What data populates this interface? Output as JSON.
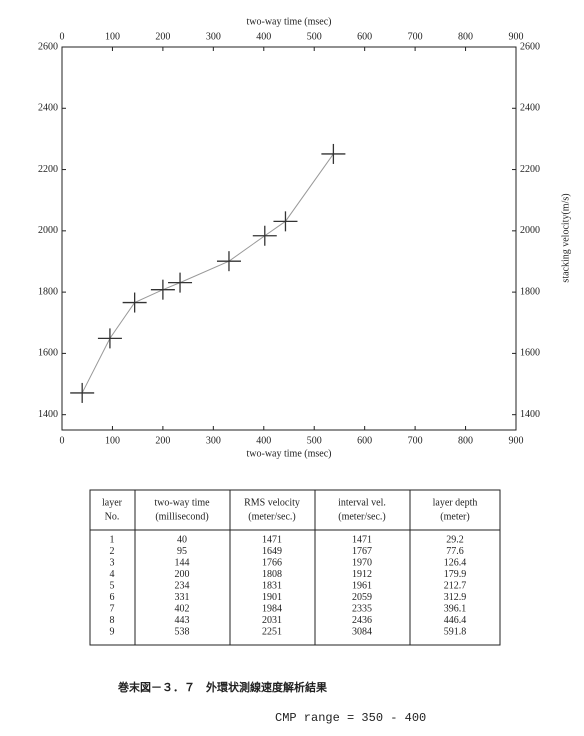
{
  "chart_data": {
    "type": "line",
    "xlabel": "two-way time (msec)",
    "ylabel": "stacking velocity(m/s)",
    "x": [
      40,
      95,
      144,
      200,
      234,
      331,
      402,
      443,
      538
    ],
    "values": [
      1471,
      1649,
      1766,
      1808,
      1831,
      1901,
      1984,
      2031,
      2251
    ],
    "color": "#333333",
    "xlim": [
      0,
      900
    ],
    "xticks": [
      0,
      100,
      200,
      300,
      400,
      500,
      600,
      700,
      800,
      900
    ],
    "ylim": [
      1350,
      2600
    ],
    "yticks": [
      1400,
      1600,
      1800,
      2000,
      2200,
      2400,
      2600
    ]
  },
  "table": {
    "header": [
      [
        "layer",
        "No."
      ],
      [
        "two-way time",
        "(millisecond)"
      ],
      [
        "RMS velocity",
        "(meter/sec.)"
      ],
      [
        "interval vel.",
        "(meter/sec.)"
      ],
      [
        "layer depth",
        "(meter)"
      ]
    ],
    "rows": [
      [
        1,
        40,
        1471,
        1471,
        29.2
      ],
      [
        2,
        95,
        1649,
        1767,
        77.6
      ],
      [
        3,
        144,
        1766,
        1970,
        126.4
      ],
      [
        4,
        200,
        1808,
        1912,
        179.9
      ],
      [
        5,
        234,
        1831,
        1961,
        212.7
      ],
      [
        6,
        331,
        1901,
        2059,
        312.9
      ],
      [
        7,
        402,
        1984,
        2335,
        396.1
      ],
      [
        8,
        443,
        2031,
        2436,
        446.4
      ],
      [
        9,
        538,
        2251,
        3084,
        591.8
      ]
    ]
  },
  "caption": "巻末図－３．７　外環状測線速度解析結果",
  "range": "CMP range = 350 - 400"
}
